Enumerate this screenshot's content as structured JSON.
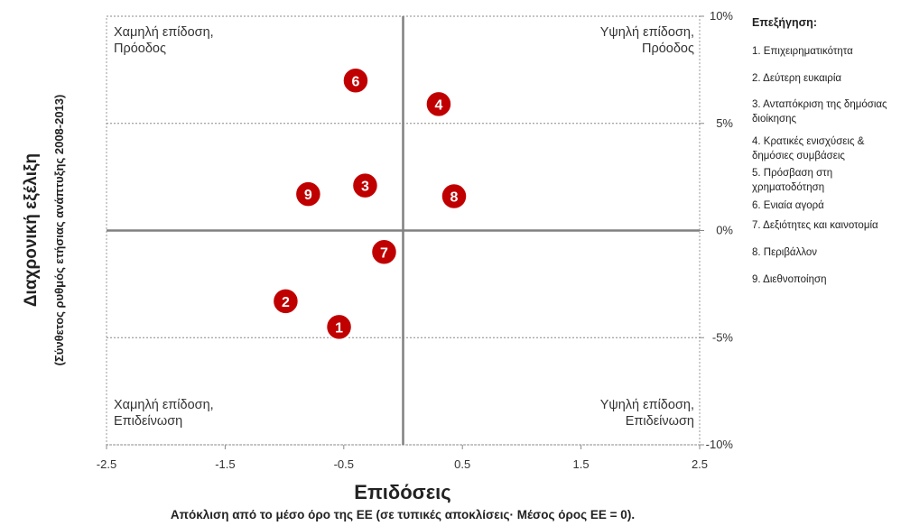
{
  "chart_data": {
    "type": "scatter",
    "x_title": "Επιδόσεις",
    "x_subtitle": "Απόκλιση από το μέσο όρο της ΕΕ (σε τυπικές αποκλίσεις· Μέσος όρος ΕΕ = 0).",
    "y_title": "Διαχρονική εξέλιξη",
    "y_subtitle": "(Σύνθετος ρυθμός ετήσιας ανάπτυξης 2008-2013)",
    "xlim": [
      -2.5,
      2.5
    ],
    "xticks": [
      -2.5,
      -1.5,
      -0.5,
      0.5,
      1.5,
      2.5
    ],
    "ylim": [
      -10,
      10
    ],
    "yticks": [
      {
        "value": 10,
        "label": "10%"
      },
      {
        "value": 5,
        "label": "5%"
      },
      {
        "value": 0,
        "label": "0%"
      },
      {
        "value": -5,
        "label": "-5%"
      },
      {
        "value": -10,
        "label": "-10%"
      }
    ],
    "color": "#c00000",
    "quadrants": {
      "top_left": [
        "Χαμηλή επίδοση,",
        "Πρόοδος"
      ],
      "top_right": [
        "Υψηλή επίδοση,",
        "Πρόοδος"
      ],
      "bottom_left": [
        "Χαμηλή επίδοση,",
        "Επιδείνωση"
      ],
      "bottom_right": [
        "Υψηλή επίδοση,",
        "Επιδείνωση"
      ]
    },
    "points": [
      {
        "label": "1",
        "x": -0.54,
        "y": -4.5
      },
      {
        "label": "2",
        "x": -0.99,
        "y": -3.3
      },
      {
        "label": "3",
        "x": -0.32,
        "y": 2.1
      },
      {
        "label": "4",
        "x": 0.3,
        "y": 5.9
      },
      {
        "label": "6",
        "x": -0.4,
        "y": 7.0
      },
      {
        "label": "7",
        "x": -0.16,
        "y": -1.0
      },
      {
        "label": "8",
        "x": 0.43,
        "y": 1.6
      },
      {
        "label": "9",
        "x": -0.8,
        "y": 1.7
      }
    ],
    "legend_title": "Επεξήγηση:",
    "legend_items": [
      [
        "1. Επιχειρηματικότητα"
      ],
      [
        "2. Δεύτερη ευκαιρία"
      ],
      [
        "3. Ανταπόκριση της δημόσιας",
        "διοίκησης"
      ],
      [
        "4. Κρατικές ενισχύσεις &",
        "δημόσιες συμβάσεις"
      ],
      [
        "5. Πρόσβαση στη",
        "χρηματοδότηση"
      ],
      [
        "6. Ενιαία αγορά"
      ],
      [
        "7. Δεξιότητες και καινοτομία"
      ],
      [
        "8. Περιβάλλον"
      ],
      [
        "9. Διεθνοποίηση"
      ]
    ]
  }
}
